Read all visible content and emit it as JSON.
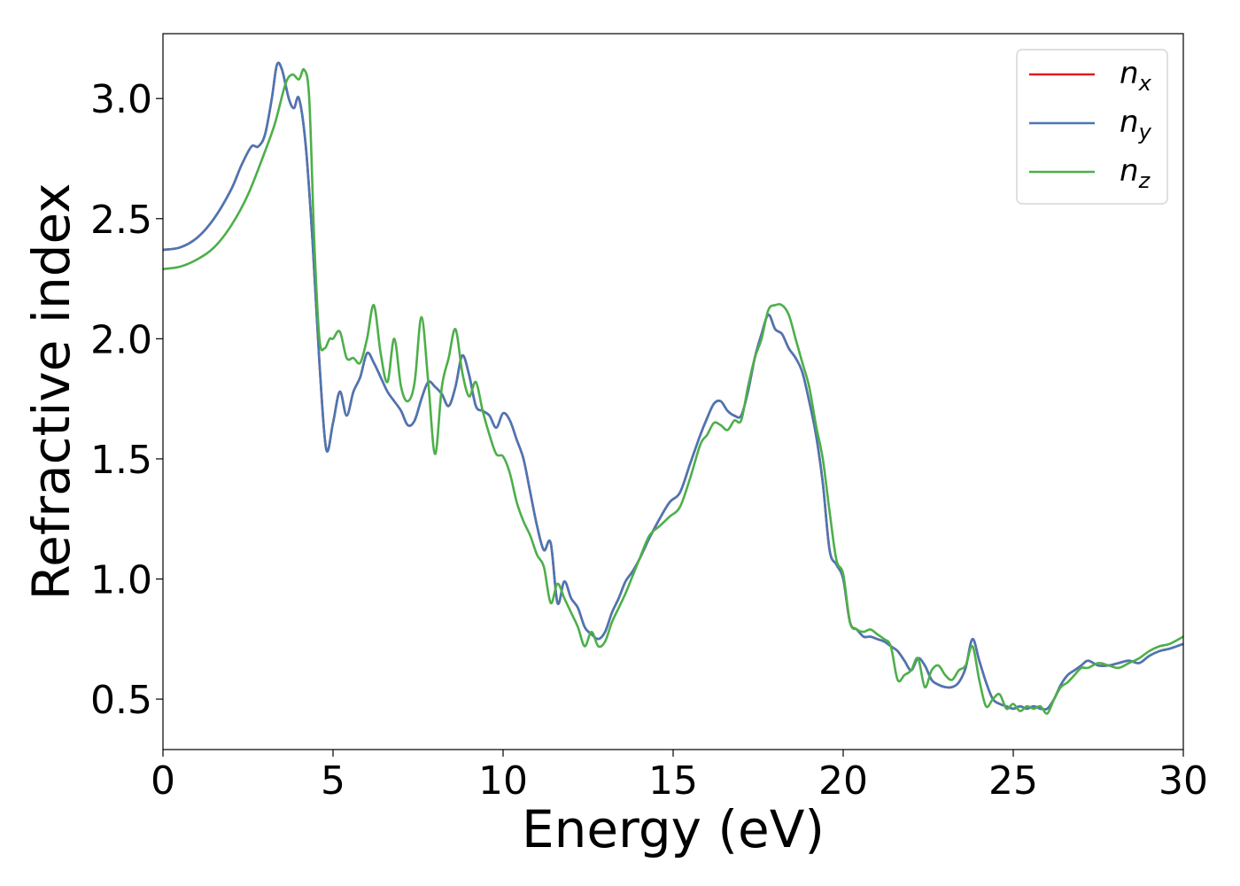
{
  "chart_data": {
    "type": "line",
    "title": "",
    "xlabel": "Energy (eV)",
    "ylabel": "Refractive index",
    "xlim": [
      0,
      30
    ],
    "ylim": [
      0.29,
      3.27
    ],
    "xticks": [
      0,
      5,
      10,
      15,
      20,
      25,
      30
    ],
    "xtick_labels": [
      "0",
      "5",
      "10",
      "15",
      "20",
      "25",
      "30"
    ],
    "yticks": [
      0.5,
      1.0,
      1.5,
      2.0,
      2.5,
      3.0
    ],
    "ytick_labels": [
      "0.5",
      "1.0",
      "1.5",
      "2.0",
      "2.5",
      "3.0"
    ],
    "grid": false,
    "legend": {
      "position": "top-right"
    },
    "series": [
      {
        "name": "n",
        "subscript": "x",
        "color": "#e41a1c",
        "x": [
          0,
          0.5,
          1.0,
          1.5,
          2.0,
          2.3,
          2.6,
          2.8,
          3.0,
          3.2,
          3.35,
          3.5,
          3.7,
          3.85,
          4.0,
          4.2,
          4.4,
          4.6,
          4.8,
          5.0,
          5.2,
          5.4,
          5.6,
          5.8,
          6.0,
          6.2,
          6.4,
          6.6,
          6.8,
          7.0,
          7.2,
          7.4,
          7.6,
          7.8,
          8.0,
          8.2,
          8.4,
          8.6,
          8.8,
          9.0,
          9.2,
          9.4,
          9.6,
          9.8,
          10.0,
          10.2,
          10.4,
          10.6,
          10.8,
          11.0,
          11.2,
          11.4,
          11.6,
          11.8,
          12.0,
          12.2,
          12.4,
          12.6,
          12.8,
          13.0,
          13.2,
          13.4,
          13.6,
          13.8,
          14.0,
          14.3,
          14.6,
          14.9,
          15.2,
          15.5,
          15.8,
          16.0,
          16.2,
          16.4,
          16.6,
          16.8,
          17.0,
          17.2,
          17.4,
          17.6,
          17.8,
          18.0,
          18.2,
          18.4,
          18.6,
          18.8,
          19.0,
          19.2,
          19.4,
          19.6,
          19.8,
          20.0,
          20.2,
          20.4,
          20.6,
          20.8,
          21.0,
          21.2,
          21.4,
          21.6,
          21.8,
          22.0,
          22.2,
          22.4,
          22.6,
          22.8,
          23.0,
          23.2,
          23.4,
          23.6,
          23.8,
          24.0,
          24.2,
          24.4,
          24.6,
          24.8,
          25.0,
          25.2,
          25.4,
          25.6,
          25.8,
          26.0,
          26.2,
          26.4,
          26.6,
          26.8,
          27.0,
          27.2,
          27.5,
          27.8,
          28.1,
          28.4,
          28.7,
          29.0,
          29.3,
          29.6,
          30.0
        ],
        "y": [
          2.37,
          2.38,
          2.42,
          2.5,
          2.62,
          2.72,
          2.8,
          2.8,
          2.85,
          3.0,
          3.14,
          3.12,
          3.0,
          2.96,
          3.0,
          2.8,
          2.4,
          1.9,
          1.54,
          1.65,
          1.78,
          1.68,
          1.78,
          1.84,
          1.94,
          1.9,
          1.84,
          1.78,
          1.74,
          1.7,
          1.64,
          1.66,
          1.75,
          1.82,
          1.8,
          1.77,
          1.72,
          1.8,
          1.93,
          1.85,
          1.72,
          1.7,
          1.68,
          1.63,
          1.69,
          1.66,
          1.58,
          1.5,
          1.36,
          1.22,
          1.12,
          1.15,
          0.9,
          0.99,
          0.92,
          0.88,
          0.8,
          0.77,
          0.75,
          0.78,
          0.86,
          0.92,
          0.99,
          1.03,
          1.08,
          1.17,
          1.25,
          1.32,
          1.36,
          1.48,
          1.6,
          1.67,
          1.73,
          1.74,
          1.7,
          1.68,
          1.68,
          1.78,
          1.92,
          2.02,
          2.1,
          2.04,
          2.02,
          1.96,
          1.92,
          1.86,
          1.74,
          1.6,
          1.4,
          1.12,
          1.06,
          1.0,
          0.82,
          0.79,
          0.76,
          0.76,
          0.75,
          0.74,
          0.72,
          0.7,
          0.66,
          0.62,
          0.67,
          0.64,
          0.58,
          0.56,
          0.55,
          0.55,
          0.57,
          0.63,
          0.75,
          0.66,
          0.57,
          0.5,
          0.48,
          0.47,
          0.46,
          0.47,
          0.46,
          0.47,
          0.46,
          0.46,
          0.5,
          0.56,
          0.6,
          0.62,
          0.64,
          0.66,
          0.64,
          0.64,
          0.65,
          0.66,
          0.65,
          0.68,
          0.7,
          0.71,
          0.73
        ]
      },
      {
        "name": "n",
        "subscript": "y",
        "color": "#4a77b4",
        "x": [
          0,
          0.5,
          1.0,
          1.5,
          2.0,
          2.3,
          2.6,
          2.8,
          3.0,
          3.2,
          3.35,
          3.5,
          3.7,
          3.85,
          4.0,
          4.2,
          4.4,
          4.6,
          4.8,
          5.0,
          5.2,
          5.4,
          5.6,
          5.8,
          6.0,
          6.2,
          6.4,
          6.6,
          6.8,
          7.0,
          7.2,
          7.4,
          7.6,
          7.8,
          8.0,
          8.2,
          8.4,
          8.6,
          8.8,
          9.0,
          9.2,
          9.4,
          9.6,
          9.8,
          10.0,
          10.2,
          10.4,
          10.6,
          10.8,
          11.0,
          11.2,
          11.4,
          11.6,
          11.8,
          12.0,
          12.2,
          12.4,
          12.6,
          12.8,
          13.0,
          13.2,
          13.4,
          13.6,
          13.8,
          14.0,
          14.3,
          14.6,
          14.9,
          15.2,
          15.5,
          15.8,
          16.0,
          16.2,
          16.4,
          16.6,
          16.8,
          17.0,
          17.2,
          17.4,
          17.6,
          17.8,
          18.0,
          18.2,
          18.4,
          18.6,
          18.8,
          19.0,
          19.2,
          19.4,
          19.6,
          19.8,
          20.0,
          20.2,
          20.4,
          20.6,
          20.8,
          21.0,
          21.2,
          21.4,
          21.6,
          21.8,
          22.0,
          22.2,
          22.4,
          22.6,
          22.8,
          23.0,
          23.2,
          23.4,
          23.6,
          23.8,
          24.0,
          24.2,
          24.4,
          24.6,
          24.8,
          25.0,
          25.2,
          25.4,
          25.6,
          25.8,
          26.0,
          26.2,
          26.4,
          26.6,
          26.8,
          27.0,
          27.2,
          27.5,
          27.8,
          28.1,
          28.4,
          28.7,
          29.0,
          29.3,
          29.6,
          30.0
        ],
        "y": [
          2.37,
          2.38,
          2.42,
          2.5,
          2.62,
          2.72,
          2.8,
          2.8,
          2.85,
          3.0,
          3.14,
          3.12,
          3.0,
          2.96,
          3.0,
          2.8,
          2.4,
          1.9,
          1.54,
          1.65,
          1.78,
          1.68,
          1.78,
          1.84,
          1.94,
          1.9,
          1.84,
          1.78,
          1.74,
          1.7,
          1.64,
          1.66,
          1.75,
          1.82,
          1.8,
          1.77,
          1.72,
          1.8,
          1.93,
          1.85,
          1.72,
          1.7,
          1.68,
          1.63,
          1.69,
          1.66,
          1.58,
          1.5,
          1.36,
          1.22,
          1.12,
          1.15,
          0.9,
          0.99,
          0.92,
          0.88,
          0.8,
          0.77,
          0.75,
          0.78,
          0.86,
          0.92,
          0.99,
          1.03,
          1.08,
          1.17,
          1.25,
          1.32,
          1.36,
          1.48,
          1.6,
          1.67,
          1.73,
          1.74,
          1.7,
          1.68,
          1.68,
          1.78,
          1.92,
          2.02,
          2.1,
          2.04,
          2.02,
          1.96,
          1.92,
          1.86,
          1.74,
          1.6,
          1.4,
          1.12,
          1.06,
          1.0,
          0.82,
          0.79,
          0.76,
          0.76,
          0.75,
          0.74,
          0.72,
          0.7,
          0.66,
          0.62,
          0.67,
          0.64,
          0.58,
          0.56,
          0.55,
          0.55,
          0.57,
          0.63,
          0.75,
          0.66,
          0.57,
          0.5,
          0.48,
          0.47,
          0.46,
          0.47,
          0.46,
          0.47,
          0.46,
          0.46,
          0.5,
          0.56,
          0.6,
          0.62,
          0.64,
          0.66,
          0.64,
          0.64,
          0.65,
          0.66,
          0.65,
          0.68,
          0.7,
          0.71,
          0.73
        ]
      },
      {
        "name": "n",
        "subscript": "z",
        "color": "#4daf4a",
        "x": [
          0,
          0.5,
          1.0,
          1.5,
          2.0,
          2.5,
          3.0,
          3.3,
          3.6,
          3.8,
          4.0,
          4.15,
          4.3,
          4.45,
          4.6,
          4.75,
          4.9,
          5.0,
          5.2,
          5.4,
          5.6,
          5.8,
          6.0,
          6.2,
          6.4,
          6.6,
          6.8,
          7.0,
          7.2,
          7.4,
          7.6,
          7.8,
          8.0,
          8.2,
          8.4,
          8.6,
          8.8,
          9.0,
          9.2,
          9.4,
          9.6,
          9.8,
          10.0,
          10.2,
          10.4,
          10.6,
          10.8,
          11.0,
          11.2,
          11.4,
          11.6,
          11.8,
          12.0,
          12.2,
          12.4,
          12.6,
          12.8,
          13.0,
          13.2,
          13.4,
          13.6,
          13.8,
          14.0,
          14.3,
          14.6,
          14.9,
          15.2,
          15.5,
          15.8,
          16.0,
          16.2,
          16.4,
          16.6,
          16.8,
          17.0,
          17.2,
          17.4,
          17.6,
          17.8,
          18.0,
          18.2,
          18.4,
          18.6,
          18.8,
          19.0,
          19.2,
          19.4,
          19.6,
          19.8,
          20.0,
          20.2,
          20.4,
          20.6,
          20.8,
          21.0,
          21.2,
          21.4,
          21.6,
          21.8,
          22.0,
          22.2,
          22.4,
          22.6,
          22.8,
          23.0,
          23.2,
          23.4,
          23.6,
          23.8,
          24.0,
          24.2,
          24.4,
          24.6,
          24.8,
          25.0,
          25.2,
          25.4,
          25.6,
          25.8,
          26.0,
          26.2,
          26.4,
          26.6,
          26.8,
          27.0,
          27.2,
          27.5,
          27.8,
          28.1,
          28.4,
          28.7,
          29.0,
          29.3,
          29.6,
          30.0
        ],
        "y": [
          2.29,
          2.3,
          2.33,
          2.38,
          2.47,
          2.6,
          2.78,
          2.9,
          3.06,
          3.1,
          3.08,
          3.12,
          3.0,
          2.4,
          2.0,
          1.96,
          2.0,
          2.0,
          2.03,
          1.92,
          1.92,
          1.9,
          2.0,
          2.14,
          1.94,
          1.82,
          2.0,
          1.8,
          1.74,
          1.82,
          2.09,
          1.82,
          1.52,
          1.8,
          1.92,
          2.04,
          1.86,
          1.76,
          1.82,
          1.7,
          1.6,
          1.52,
          1.51,
          1.44,
          1.32,
          1.24,
          1.18,
          1.1,
          1.05,
          0.9,
          0.98,
          0.92,
          0.86,
          0.8,
          0.72,
          0.78,
          0.72,
          0.74,
          0.82,
          0.88,
          0.94,
          1.01,
          1.08,
          1.18,
          1.22,
          1.26,
          1.3,
          1.42,
          1.56,
          1.6,
          1.65,
          1.64,
          1.62,
          1.66,
          1.66,
          1.8,
          1.92,
          2.0,
          2.12,
          2.14,
          2.14,
          2.1,
          2.0,
          1.9,
          1.8,
          1.64,
          1.5,
          1.28,
          1.08,
          1.02,
          0.82,
          0.79,
          0.78,
          0.79,
          0.77,
          0.75,
          0.72,
          0.58,
          0.6,
          0.62,
          0.67,
          0.55,
          0.62,
          0.64,
          0.6,
          0.58,
          0.62,
          0.64,
          0.72,
          0.58,
          0.47,
          0.5,
          0.52,
          0.46,
          0.48,
          0.45,
          0.47,
          0.46,
          0.47,
          0.44,
          0.5,
          0.55,
          0.57,
          0.6,
          0.63,
          0.63,
          0.65,
          0.64,
          0.63,
          0.65,
          0.67,
          0.7,
          0.72,
          0.73,
          0.76
        ]
      }
    ]
  }
}
